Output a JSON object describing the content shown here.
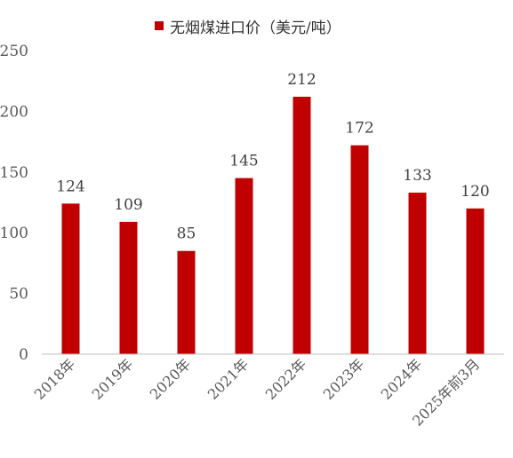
{
  "chart_data": {
    "type": "bar",
    "legend": "无烟煤进口价（美元/吨）",
    "categories": [
      "2018年",
      "2019年",
      "2020年",
      "2021年",
      "2022年",
      "2023年",
      "2024年",
      "2025年前3月"
    ],
    "series": [
      {
        "name": "无烟煤进口价（美元/吨）",
        "values": [
          124,
          109,
          85,
          145,
          212,
          172,
          133,
          120
        ]
      }
    ],
    "data_labels": [
      "124",
      "109",
      "85",
      "145",
      "212",
      "172",
      "133",
      "120"
    ],
    "y_ticks": [
      "0",
      "50",
      "100",
      "150",
      "200",
      "250"
    ],
    "ylim": [
      0,
      250
    ],
    "grid": false,
    "legend_position": "top-center",
    "bar_color": "#C00000"
  }
}
